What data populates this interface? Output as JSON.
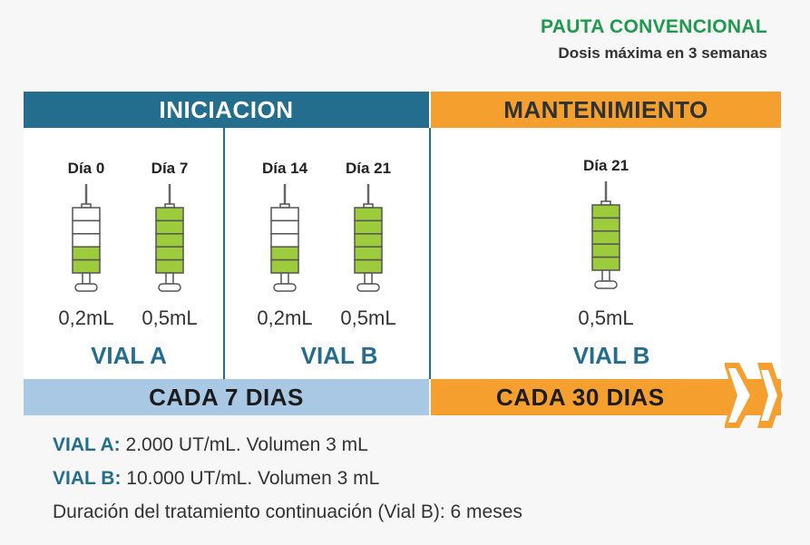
{
  "header": {
    "title": "PAUTA CONVENCIONAL",
    "subtitle": "Dosis máxima en 3 semanas"
  },
  "phases": {
    "initiation": "INICIACION",
    "maintenance": "MANTENIMIENTO"
  },
  "doses": [
    {
      "day": "Día 0",
      "volume": "0,2mL",
      "fill_bars": 2,
      "total_bars": 5
    },
    {
      "day": "Día 7",
      "volume": "0,5mL",
      "fill_bars": 5,
      "total_bars": 5
    },
    {
      "day": "Día 14",
      "volume": "0,2mL",
      "fill_bars": 2,
      "total_bars": 5
    },
    {
      "day": "Día 21",
      "volume": "0,5mL",
      "fill_bars": 5,
      "total_bars": 5
    },
    {
      "day": "Día 21",
      "volume": "0,5mL",
      "fill_bars": 5,
      "total_bars": 5
    }
  ],
  "vials": {
    "a": "VIAL A",
    "b": "VIAL B",
    "b_maintenance": "VIAL B"
  },
  "frequency": {
    "initiation": "CADA 7 DIAS",
    "maintenance": "CADA 30 DIAS"
  },
  "info": {
    "vial_a_label": "VIAL A:",
    "vial_a_text": "2.000 UT/mL. Volumen 3 mL",
    "vial_b_label": "VIAL B:",
    "vial_b_text": "10.000 UT/mL. Volumen 3 mL",
    "duration": "Duración del tratamiento continuación (Vial B): 6 meses"
  },
  "colors": {
    "blue": "#236e8e",
    "orange": "#f59f2f",
    "light_blue": "#a9c8e4",
    "green_fill": "#9ccc3c",
    "title_green": "#1e9a4c"
  }
}
